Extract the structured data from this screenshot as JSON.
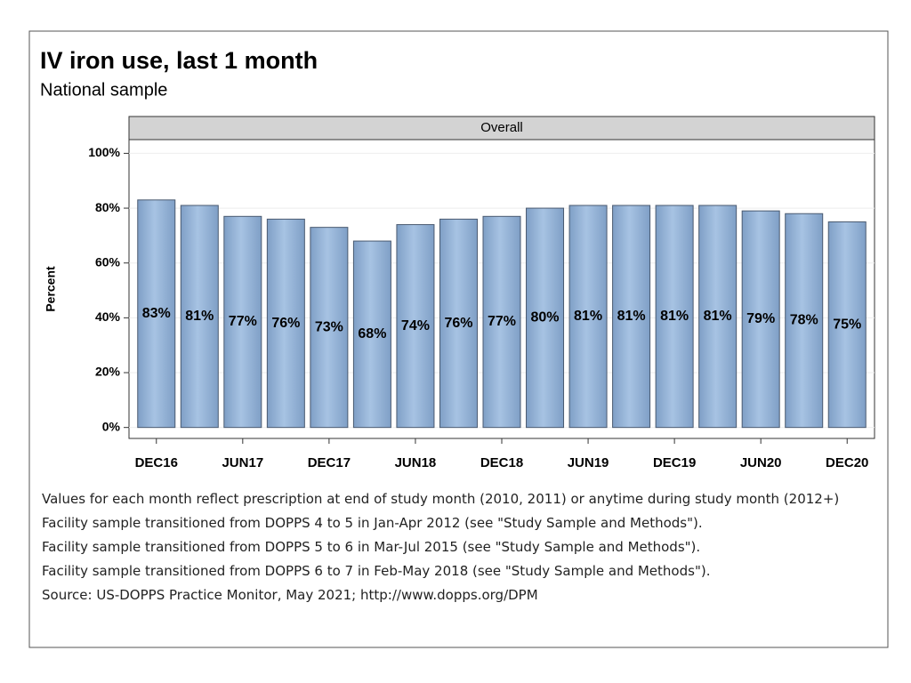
{
  "chart_data": {
    "type": "bar",
    "title": "IV iron use, last 1 month",
    "subtitle": "National sample",
    "panel_label": "Overall",
    "y_label": "Percent",
    "categories": [
      "DEC16",
      null,
      "JUN17",
      null,
      "DEC17",
      null,
      "JUN18",
      null,
      "DEC18",
      null,
      "JUN19",
      null,
      "DEC19",
      null,
      "JUN20",
      null,
      "DEC20"
    ],
    "values": [
      83,
      81,
      77,
      76,
      73,
      68,
      74,
      76,
      77,
      80,
      81,
      81,
      81,
      81,
      79,
      78,
      75
    ],
    "value_labels": [
      "83%",
      "81%",
      "77%",
      "76%",
      "73%",
      "68%",
      "74%",
      "76%",
      "77%",
      "80%",
      "81%",
      "81%",
      "81%",
      "81%",
      "79%",
      "78%",
      "75%"
    ],
    "color": "#a7c3e3",
    "ylim": [
      -4,
      105
    ],
    "yticks": [
      {
        "value": 0,
        "label": "0%"
      },
      {
        "value": 20,
        "label": "20%"
      },
      {
        "value": 40,
        "label": "40%"
      },
      {
        "value": 60,
        "label": "60%"
      },
      {
        "value": 80,
        "label": "80%"
      },
      {
        "value": 100,
        "label": "100%"
      }
    ],
    "grid": true,
    "notes": [
      "Values for each month reflect prescription at end of study month (2010, 2011) or anytime during study month (2012+)",
      "Facility sample transitioned from DOPPS 4 to 5 in Jan-Apr 2012 (see \"Study Sample and Methods\").",
      "Facility sample transitioned from DOPPS 5 to 6 in Mar-Jul 2015 (see \"Study Sample and Methods\").",
      "Facility sample transitioned from DOPPS 6 to 7 in Feb-May 2018 (see \"Study Sample and Methods\").",
      "Source: US-DOPPS Practice Monitor, May 2021; http://www.dopps.org/DPM"
    ]
  }
}
